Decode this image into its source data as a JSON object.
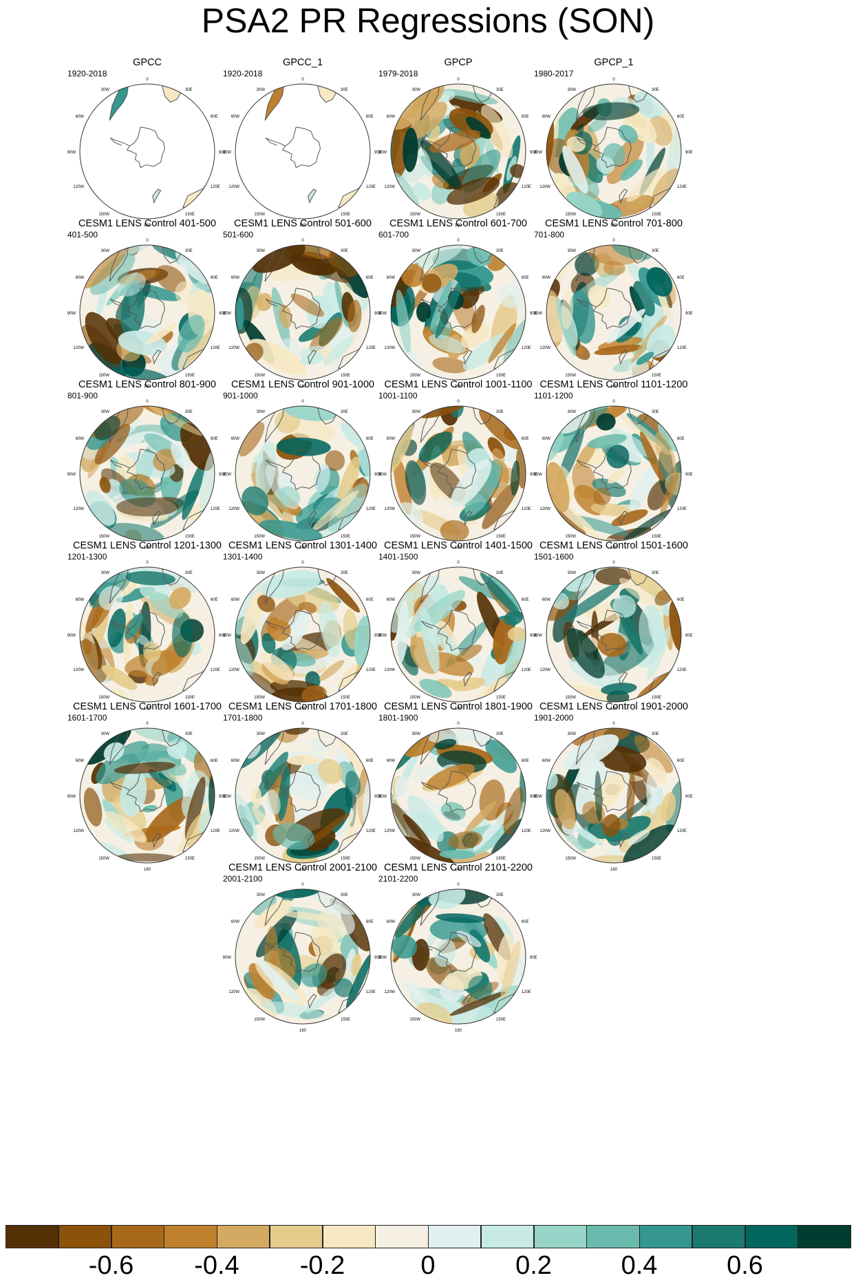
{
  "title": "PSA2 PR Regressions (SON)",
  "colors": {
    "scale": [
      "#543005",
      "#8c510a",
      "#a8681b",
      "#bf812d",
      "#d4aa62",
      "#e6cc8c",
      "#f6e8c3",
      "#f5f0e3",
      "#e1f0ee",
      "#c7eae5",
      "#97d5c8",
      "#6abbae",
      "#35978f",
      "#1a7a70",
      "#01665e",
      "#003c30"
    ],
    "coast": "#555555",
    "rim": "#333333"
  },
  "chart_data": {
    "type": "polar-map-grid",
    "projection": "south-polar stereographic",
    "longitude_labels": [
      "0",
      "30E",
      "60E",
      "90E",
      "120E",
      "150E",
      "180",
      "150W",
      "120W",
      "90W",
      "60W",
      "30W"
    ],
    "colorbar": {
      "levels": [
        -0.7,
        -0.6,
        -0.5,
        -0.4,
        -0.3,
        -0.2,
        -0.1,
        0,
        0.1,
        0.2,
        0.3,
        0.4,
        0.5,
        0.6,
        0.7
      ],
      "tick_labels": [
        "-0.6",
        "-0.4",
        "-0.2",
        "0",
        "0.2",
        "0.4",
        "0.6"
      ],
      "tick_values": [
        -0.6,
        -0.4,
        -0.2,
        0,
        0.2,
        0.4,
        0.6
      ]
    },
    "panels": [
      {
        "title": "GPCC",
        "period": "1920-2018",
        "land_only": true
      },
      {
        "title": "GPCC_1",
        "period": "1920-2018",
        "land_only": true
      },
      {
        "title": "GPCP",
        "period": "1979-2018",
        "land_only": false
      },
      {
        "title": "GPCP_1",
        "period": "1980-2017",
        "land_only": false
      },
      {
        "title": "CESM1 LENS Control 401-500",
        "period": "401-500",
        "land_only": false
      },
      {
        "title": "CESM1 LENS Control 501-600",
        "period": "501-600",
        "land_only": false
      },
      {
        "title": "CESM1 LENS Control 601-700",
        "period": "601-700",
        "land_only": false
      },
      {
        "title": "CESM1 LENS Control 701-800",
        "period": "701-800",
        "land_only": false
      },
      {
        "title": "CESM1 LENS Control 801-900",
        "period": "801-900",
        "land_only": false
      },
      {
        "title": "CESM1 LENS Control 901-1000",
        "period": "901-1000",
        "land_only": false
      },
      {
        "title": "CESM1 LENS Control 1001-1100",
        "period": "1001-1100",
        "land_only": false
      },
      {
        "title": "CESM1 LENS Control 1101-1200",
        "period": "1101-1200",
        "land_only": false
      },
      {
        "title": "CESM1 LENS Control 1201-1300",
        "period": "1201-1300",
        "land_only": false
      },
      {
        "title": "CESM1 LENS Control 1301-1400",
        "period": "1301-1400",
        "land_only": false
      },
      {
        "title": "CESM1 LENS Control 1401-1500",
        "period": "1401-1500",
        "land_only": false
      },
      {
        "title": "CESM1 LENS Control 1501-1600",
        "period": "1501-1600",
        "land_only": false
      },
      {
        "title": "CESM1 LENS Control 1601-1700",
        "period": "1601-1700",
        "land_only": false
      },
      {
        "title": "CESM1 LENS Control 1701-1800",
        "period": "1701-1800",
        "land_only": false
      },
      {
        "title": "CESM1 LENS Control 1801-1900",
        "period": "1801-1900",
        "land_only": false
      },
      {
        "title": "CESM1 LENS Control 1901-2000",
        "period": "1901-2000",
        "land_only": false
      },
      {
        "title": "CESM1 LENS Control 2001-2100",
        "period": "2001-2100",
        "land_only": false
      },
      {
        "title": "CESM1 LENS Control 2101-2200",
        "period": "2101-2200",
        "land_only": false
      }
    ]
  }
}
